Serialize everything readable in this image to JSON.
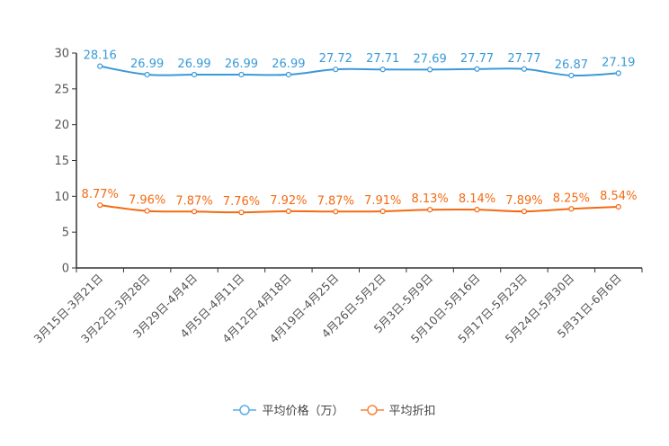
{
  "chart_data": {
    "type": "line",
    "title": "",
    "xlabel": "",
    "ylabel": "",
    "ylim": [
      0,
      30
    ],
    "yticks": [
      0,
      5,
      10,
      15,
      20,
      25,
      30
    ],
    "grid": false,
    "legend_position": "bottom",
    "categories": [
      "3月15日-3月21日",
      "3月22日-3月28日",
      "3月29日-4月4日",
      "4月5日-4月11日",
      "4月12日-4月18日",
      "4月19日-4月25日",
      "4月26日-5月2日",
      "5月3日-5月9日",
      "5月10日-5月16日",
      "5月17日-5月23日",
      "5月24日-5月30日",
      "5月31日-6月6日"
    ],
    "series": [
      {
        "name": "平均价格（万）",
        "color": "#3a9ad9",
        "values": [
          28.16,
          26.99,
          26.99,
          26.99,
          26.99,
          27.72,
          27.71,
          27.69,
          27.77,
          27.77,
          26.87,
          27.19
        ],
        "labels": [
          "28.16",
          "26.99",
          "26.99",
          "26.99",
          "26.99",
          "27.72",
          "27.71",
          "27.69",
          "27.77",
          "27.77",
          "26.87",
          "27.19"
        ]
      },
      {
        "name": "平均折扣",
        "color": "#f46a12",
        "values": [
          8.77,
          7.96,
          7.87,
          7.76,
          7.92,
          7.87,
          7.91,
          8.13,
          8.14,
          7.89,
          8.25,
          8.54
        ],
        "labels": [
          "8.77%",
          "7.96%",
          "7.87%",
          "7.76%",
          "7.92%",
          "7.87%",
          "7.91%",
          "8.13%",
          "8.14%",
          "7.89%",
          "8.25%",
          "8.54%"
        ]
      }
    ]
  }
}
